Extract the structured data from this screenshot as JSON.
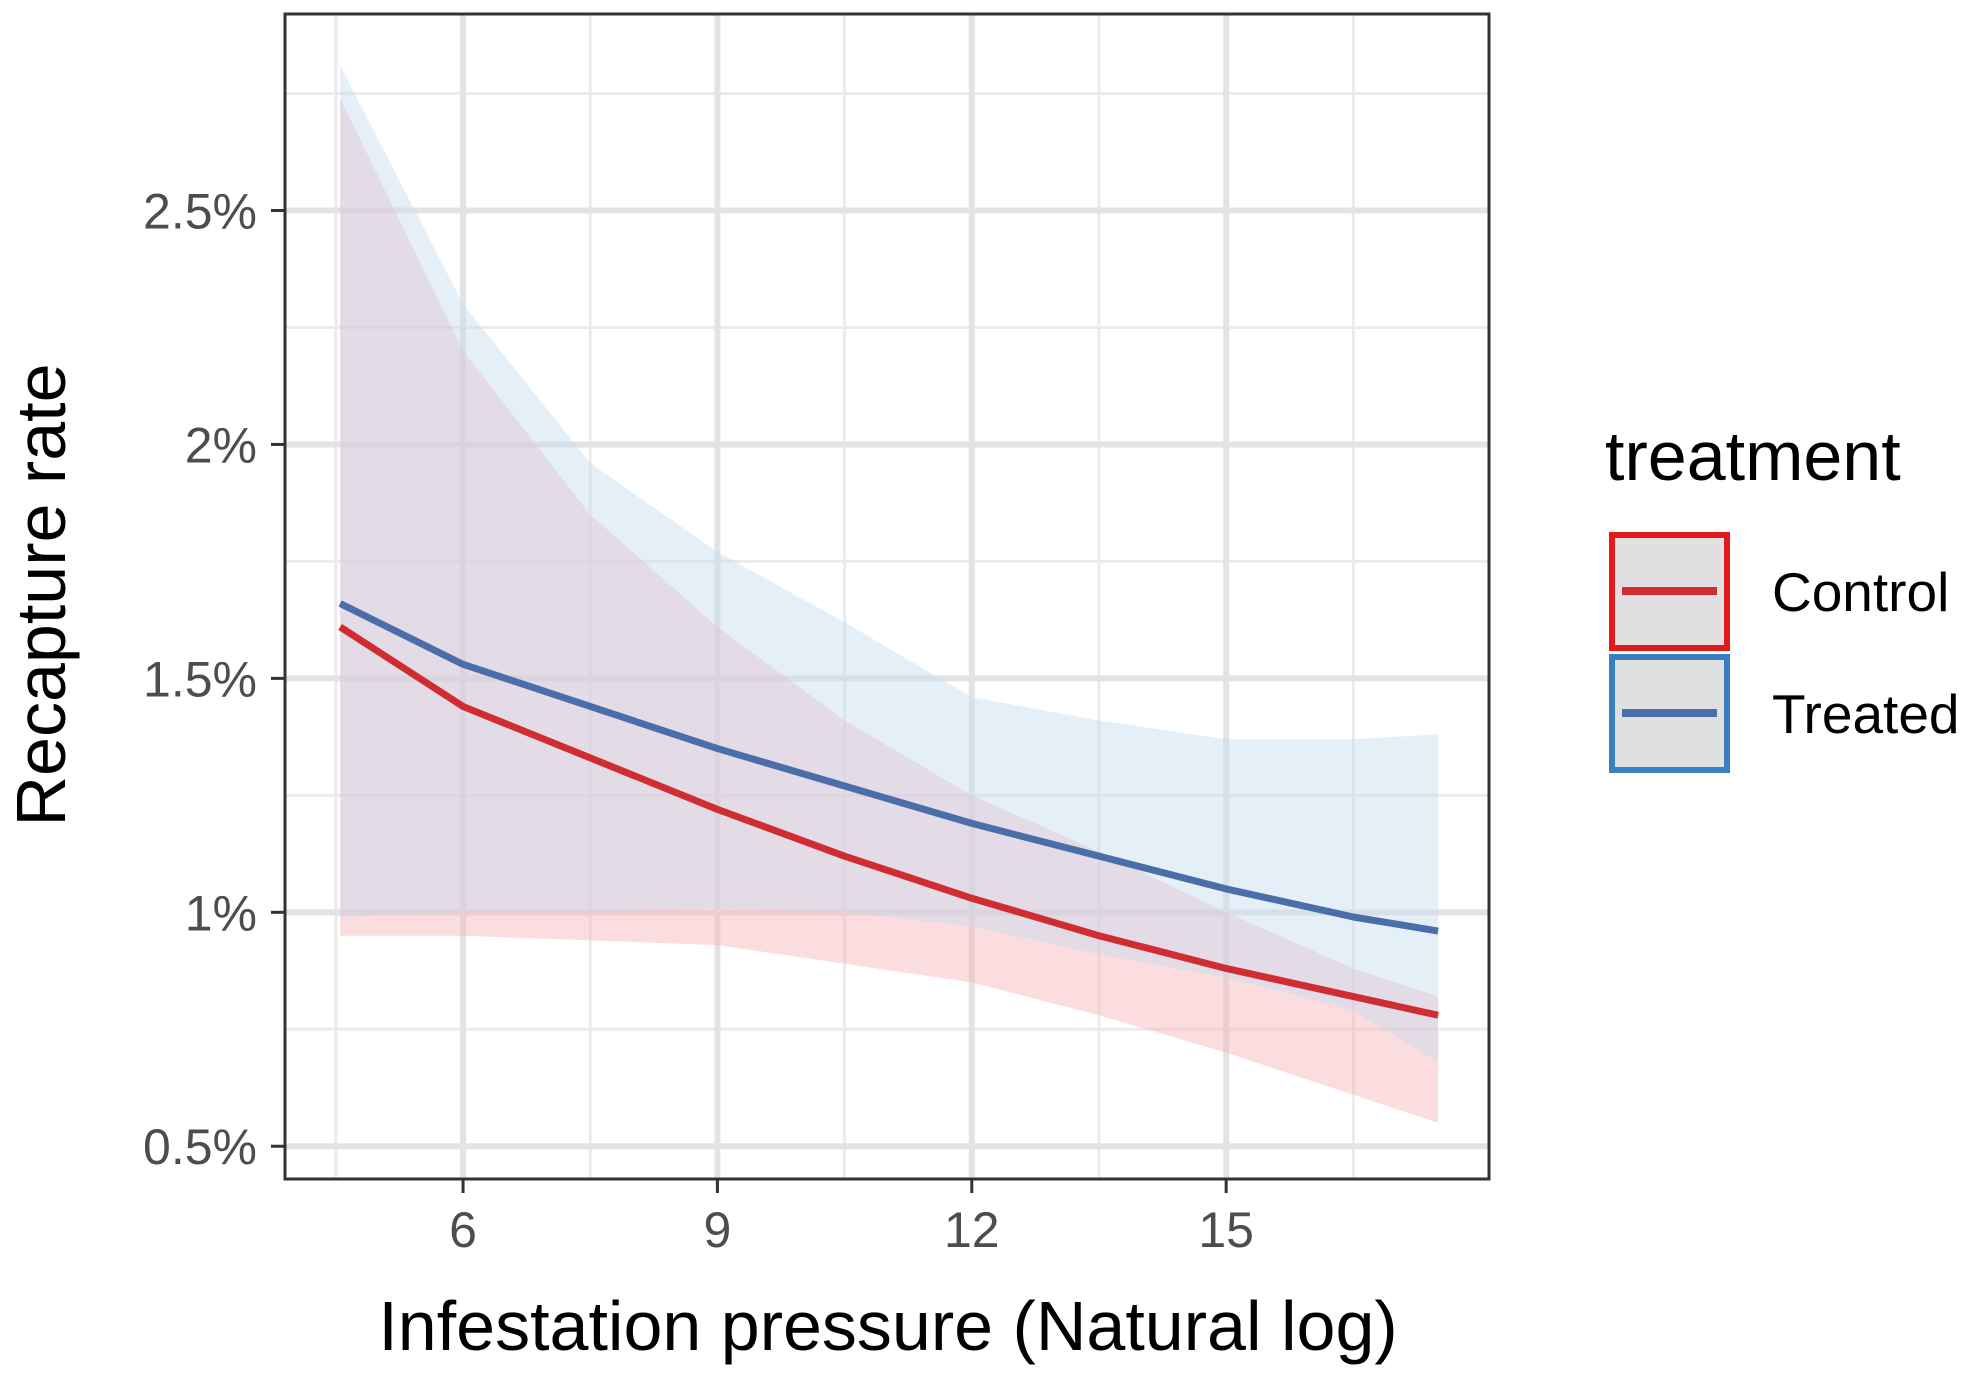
{
  "chart_data": {
    "type": "line",
    "xlabel": "Infestation pressure (Natural log)",
    "ylabel": "Recapture rate",
    "xlim": [
      3.9,
      18.1
    ],
    "ylim": [
      0.43,
      2.92
    ],
    "x_ticks": [
      {
        "value": 6,
        "label": "6"
      },
      {
        "value": 9,
        "label": "9"
      },
      {
        "value": 12,
        "label": "12"
      },
      {
        "value": 15,
        "label": "15"
      }
    ],
    "y_ticks": [
      {
        "value": 0.5,
        "label": "0.5%"
      },
      {
        "value": 1.0,
        "label": "1%"
      },
      {
        "value": 1.5,
        "label": "1.5%"
      },
      {
        "value": 2.0,
        "label": "2%"
      },
      {
        "value": 2.5,
        "label": "2.5%"
      }
    ],
    "x_minor_gridlines": [
      4.5,
      7.5,
      10.5,
      13.5,
      16.5
    ],
    "y_minor_gridlines": [
      0.75,
      1.25,
      1.75,
      2.25,
      2.75
    ],
    "grid": true,
    "legend": {
      "title": "treatment",
      "position": "right"
    },
    "series": [
      {
        "name": "Control",
        "color": "#d02d32",
        "fill_color": "#f8b4b8",
        "border_color": "#e31a1c",
        "x": [
          4.55,
          6,
          7.5,
          9,
          10.5,
          12,
          13.5,
          15,
          16.5,
          17.5
        ],
        "values": [
          1.61,
          1.44,
          1.33,
          1.22,
          1.12,
          1.03,
          0.95,
          0.88,
          0.82,
          0.78
        ],
        "lower": [
          0.95,
          0.95,
          0.94,
          0.93,
          0.89,
          0.85,
          0.78,
          0.7,
          0.61,
          0.55
        ],
        "upper": [
          2.74,
          2.2,
          1.85,
          1.61,
          1.41,
          1.25,
          1.13,
          1.0,
          0.88,
          0.82
        ]
      },
      {
        "name": "Treated",
        "color": "#4a6ea9",
        "fill_color": "#c5dbef",
        "border_color": "#3a7fc1",
        "x": [
          4.55,
          6,
          7.5,
          9,
          10.5,
          12,
          13.5,
          15,
          16.5,
          17.5
        ],
        "values": [
          1.66,
          1.53,
          1.44,
          1.35,
          1.27,
          1.19,
          1.12,
          1.05,
          0.99,
          0.96
        ],
        "lower": [
          0.99,
          1.0,
          1.0,
          1.01,
          1.0,
          0.97,
          0.91,
          0.86,
          0.79,
          0.68
        ],
        "upper": [
          2.81,
          2.3,
          1.96,
          1.77,
          1.62,
          1.46,
          1.41,
          1.37,
          1.37,
          1.38
        ]
      }
    ]
  }
}
